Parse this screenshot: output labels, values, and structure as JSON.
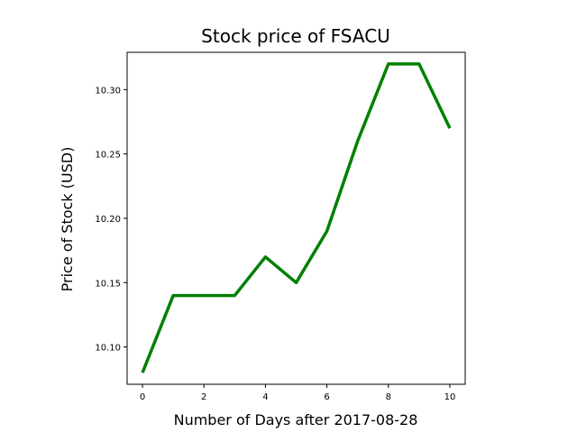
{
  "chart_data": {
    "type": "line",
    "title": "Stock price of FSACU",
    "xlabel": "Number of Days after 2017-08-28",
    "ylabel": "Price of Stock (USD)",
    "x": [
      0,
      1,
      2,
      3,
      4,
      5,
      6,
      7,
      8,
      9,
      10
    ],
    "series": [
      {
        "values": [
          10.08,
          10.14,
          10.14,
          10.14,
          10.17,
          10.15,
          10.19,
          10.26,
          10.32,
          10.32,
          10.27
        ],
        "color": "#008000"
      }
    ],
    "xlim": [
      -0.5,
      10.5
    ],
    "ylim": [
      10.071,
      10.329
    ],
    "xticks": [
      0,
      2,
      4,
      6,
      8,
      10
    ],
    "xtick_labels": [
      "0",
      "2",
      "4",
      "6",
      "8",
      "10"
    ],
    "yticks": [
      10.1,
      10.15,
      10.2,
      10.25,
      10.3
    ],
    "ytick_labels": [
      "10.10",
      "10.15",
      "10.20",
      "10.25",
      "10.30"
    ],
    "grid": false,
    "legend": false
  }
}
